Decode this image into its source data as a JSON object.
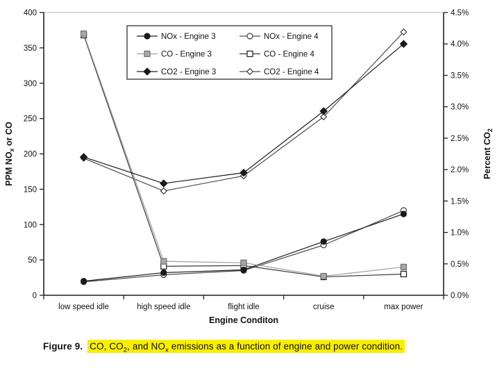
{
  "chart_data": {
    "type": "line",
    "title": "",
    "xlabel": "Engine Conditon",
    "ylabel_left": {
      "pre": "PPM NO",
      "sub": "x",
      "post": " or CO"
    },
    "ylabel_right": {
      "pre": "Percent CO",
      "sub": "2",
      "post": ""
    },
    "categories": [
      "low speed idle",
      "high speed idle",
      "flight idle",
      "cruise",
      "max power"
    ],
    "axis_left": {
      "min": 0,
      "max": 400,
      "ticks": [
        0,
        50,
        100,
        150,
        200,
        250,
        300,
        350,
        400
      ]
    },
    "axis_right": {
      "min": 0,
      "max": 4.5,
      "ticks": [
        0,
        0.5,
        1.0,
        1.5,
        2.0,
        2.5,
        3.0,
        3.5,
        4.0,
        4.5
      ],
      "suffix": "%",
      "decimals": 1
    },
    "grid": "top-line-only",
    "legend_position": "top-center-inside",
    "series": [
      {
        "name": "NOx - Engine 3",
        "axis": "left",
        "marker": "filled-circle",
        "line_color": "#1a1a1a",
        "marker_fill": "#1a1a1a",
        "marker_stroke": "#1a1a1a",
        "values": [
          20,
          32,
          36,
          76,
          115
        ]
      },
      {
        "name": "NOx - Engine 4",
        "axis": "left",
        "marker": "open-circle",
        "line_color": "#4d4d4d",
        "marker_fill": "#ffffff",
        "marker_stroke": "#3a3a3a",
        "values": [
          19,
          29,
          35,
          71,
          120
        ]
      },
      {
        "name": "CO - Engine 3",
        "axis": "left",
        "marker": "filled-square",
        "line_color": "#9e9e9e",
        "marker_fill": "#a8a8a8",
        "marker_stroke": "#6e6e6e",
        "values": [
          370,
          48,
          46,
          27,
          40
        ]
      },
      {
        "name": "CO - Engine 4",
        "axis": "left",
        "marker": "open-square",
        "line_color": "#3a3a3a",
        "marker_fill": "#ffffff",
        "marker_stroke": "#1a1a1a",
        "values": [
          368,
          41,
          42,
          26,
          30
        ]
      },
      {
        "name": "CO2 - Engine 3",
        "axis": "right",
        "marker": "filled-diamond",
        "line_color": "#1a1a1a",
        "marker_fill": "#1a1a1a",
        "marker_stroke": "#1a1a1a",
        "values": [
          2.2,
          1.78,
          1.95,
          2.93,
          4.0
        ]
      },
      {
        "name": "CO2 - Engine 4",
        "axis": "right",
        "marker": "open-diamond",
        "line_color": "#4d4d4d",
        "marker_fill": "#ffffff",
        "marker_stroke": "#2a2a2a",
        "values": [
          2.18,
          1.66,
          1.9,
          2.84,
          4.19
        ]
      }
    ],
    "colors": {
      "axis": "#1f1f1f",
      "tick_text": "#111111",
      "top_gridline": "#b3b3b3"
    }
  },
  "caption": {
    "label": "Figure 9.",
    "highlight_color": "#f9ee00",
    "parts": [
      {
        "t": "CO, CO"
      },
      {
        "t": "2",
        "sub": true
      },
      {
        "t": ", and NO"
      },
      {
        "t": "x",
        "sub": true
      },
      {
        "t": " emissions as a function of engine and power condition."
      }
    ]
  }
}
